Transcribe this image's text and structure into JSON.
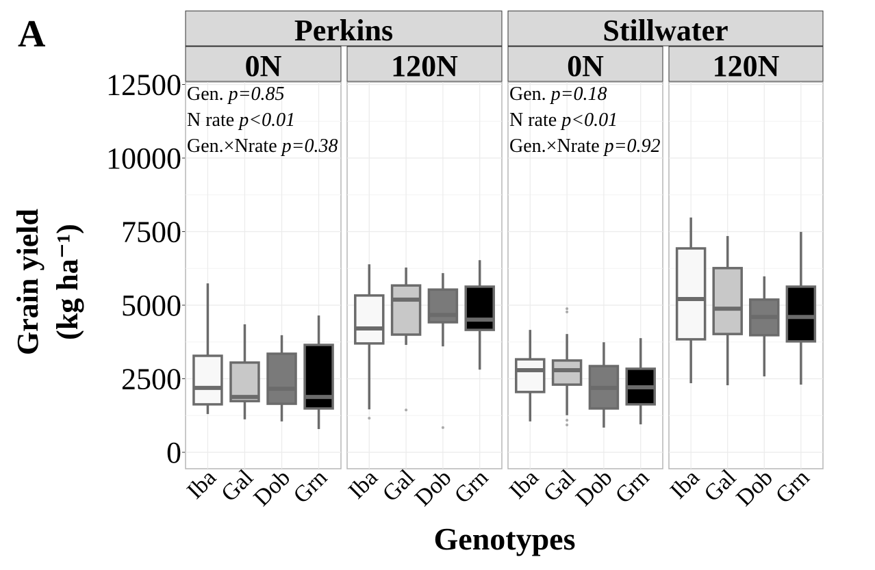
{
  "panel_label": "A",
  "chart_data": {
    "type": "box",
    "xlabel": "Genotypes",
    "ylabel": [
      "Grain yield",
      "(kg ha⁻¹)"
    ],
    "ylim": [
      -600,
      12900
    ],
    "yticks": [
      0,
      2500,
      5000,
      7500,
      10000,
      12500
    ],
    "ytick_labels": [
      "0",
      "2500",
      "5000",
      "7500",
      "10000",
      "12500"
    ],
    "categories": [
      "Iba",
      "Gal",
      "Dob",
      "Grn"
    ],
    "fill_colors": {
      "Iba": "#f8f8f8",
      "Gal": "#c8c8c8",
      "Dob": "#7a7a7a",
      "Grn": "#000000"
    },
    "outline_color": "#6b6b6b",
    "grid": true,
    "locations": [
      {
        "name": "Perkins",
        "stats": [
          {
            "label": "Gen.",
            "p": "p=0.85"
          },
          {
            "label": "N rate",
            "p": "p<0.01"
          },
          {
            "label": "Gen.×Nrate",
            "p": "p=0.38"
          }
        ],
        "panels": [
          {
            "name": "0N",
            "boxes": [
              {
                "min": 1300,
                "q1": 1630,
                "median": 2190,
                "q3": 3280,
                "max": 5740,
                "outliers": []
              },
              {
                "min": 1120,
                "q1": 1740,
                "median": 1880,
                "q3": 3050,
                "max": 4350,
                "outliers": []
              },
              {
                "min": 1050,
                "q1": 1650,
                "median": 2160,
                "q3": 3350,
                "max": 3980,
                "outliers": []
              },
              {
                "min": 790,
                "q1": 1490,
                "median": 1880,
                "q3": 3650,
                "max": 4650,
                "outliers": []
              }
            ]
          },
          {
            "name": "120N",
            "boxes": [
              {
                "min": 1460,
                "q1": 3700,
                "median": 4210,
                "q3": 5330,
                "max": 6390,
                "outliers": [
                  1160
                ]
              },
              {
                "min": 3650,
                "q1": 4000,
                "median": 5190,
                "q3": 5670,
                "max": 6280,
                "outliers": [
                  1440
                ]
              },
              {
                "min": 3600,
                "q1": 4420,
                "median": 4670,
                "q3": 5530,
                "max": 6090,
                "outliers": [
                  840
                ]
              },
              {
                "min": 2810,
                "q1": 4160,
                "median": 4510,
                "q3": 5630,
                "max": 6530,
                "outliers": []
              }
            ]
          }
        ]
      },
      {
        "name": "Stillwater",
        "stats": [
          {
            "label": "Gen.",
            "p": "p=0.18"
          },
          {
            "label": "N rate",
            "p": "p<0.01"
          },
          {
            "label": "Gen.×Nrate",
            "p": "p=0.92"
          }
        ],
        "panels": [
          {
            "name": "0N",
            "boxes": [
              {
                "min": 1050,
                "q1": 2050,
                "median": 2790,
                "q3": 3160,
                "max": 4160,
                "outliers": []
              },
              {
                "min": 1260,
                "q1": 2300,
                "median": 2790,
                "q3": 3120,
                "max": 4020,
                "outliers": [
                  4880,
                  4770,
                  1090,
                  930
                ]
              },
              {
                "min": 840,
                "q1": 1490,
                "median": 2190,
                "q3": 2930,
                "max": 3740,
                "outliers": []
              },
              {
                "min": 950,
                "q1": 1630,
                "median": 2210,
                "q3": 2840,
                "max": 3880,
                "outliers": []
              }
            ]
          },
          {
            "name": "120N",
            "boxes": [
              {
                "min": 2350,
                "q1": 3840,
                "median": 5210,
                "q3": 6930,
                "max": 7980,
                "outliers": []
              },
              {
                "min": 2280,
                "q1": 4020,
                "median": 4880,
                "q3": 6260,
                "max": 7350,
                "outliers": []
              },
              {
                "min": 2580,
                "q1": 3980,
                "median": 4600,
                "q3": 5190,
                "max": 5980,
                "outliers": []
              },
              {
                "min": 2300,
                "q1": 3770,
                "median": 4600,
                "q3": 5630,
                "max": 7490,
                "outliers": []
              }
            ]
          }
        ]
      }
    ]
  }
}
